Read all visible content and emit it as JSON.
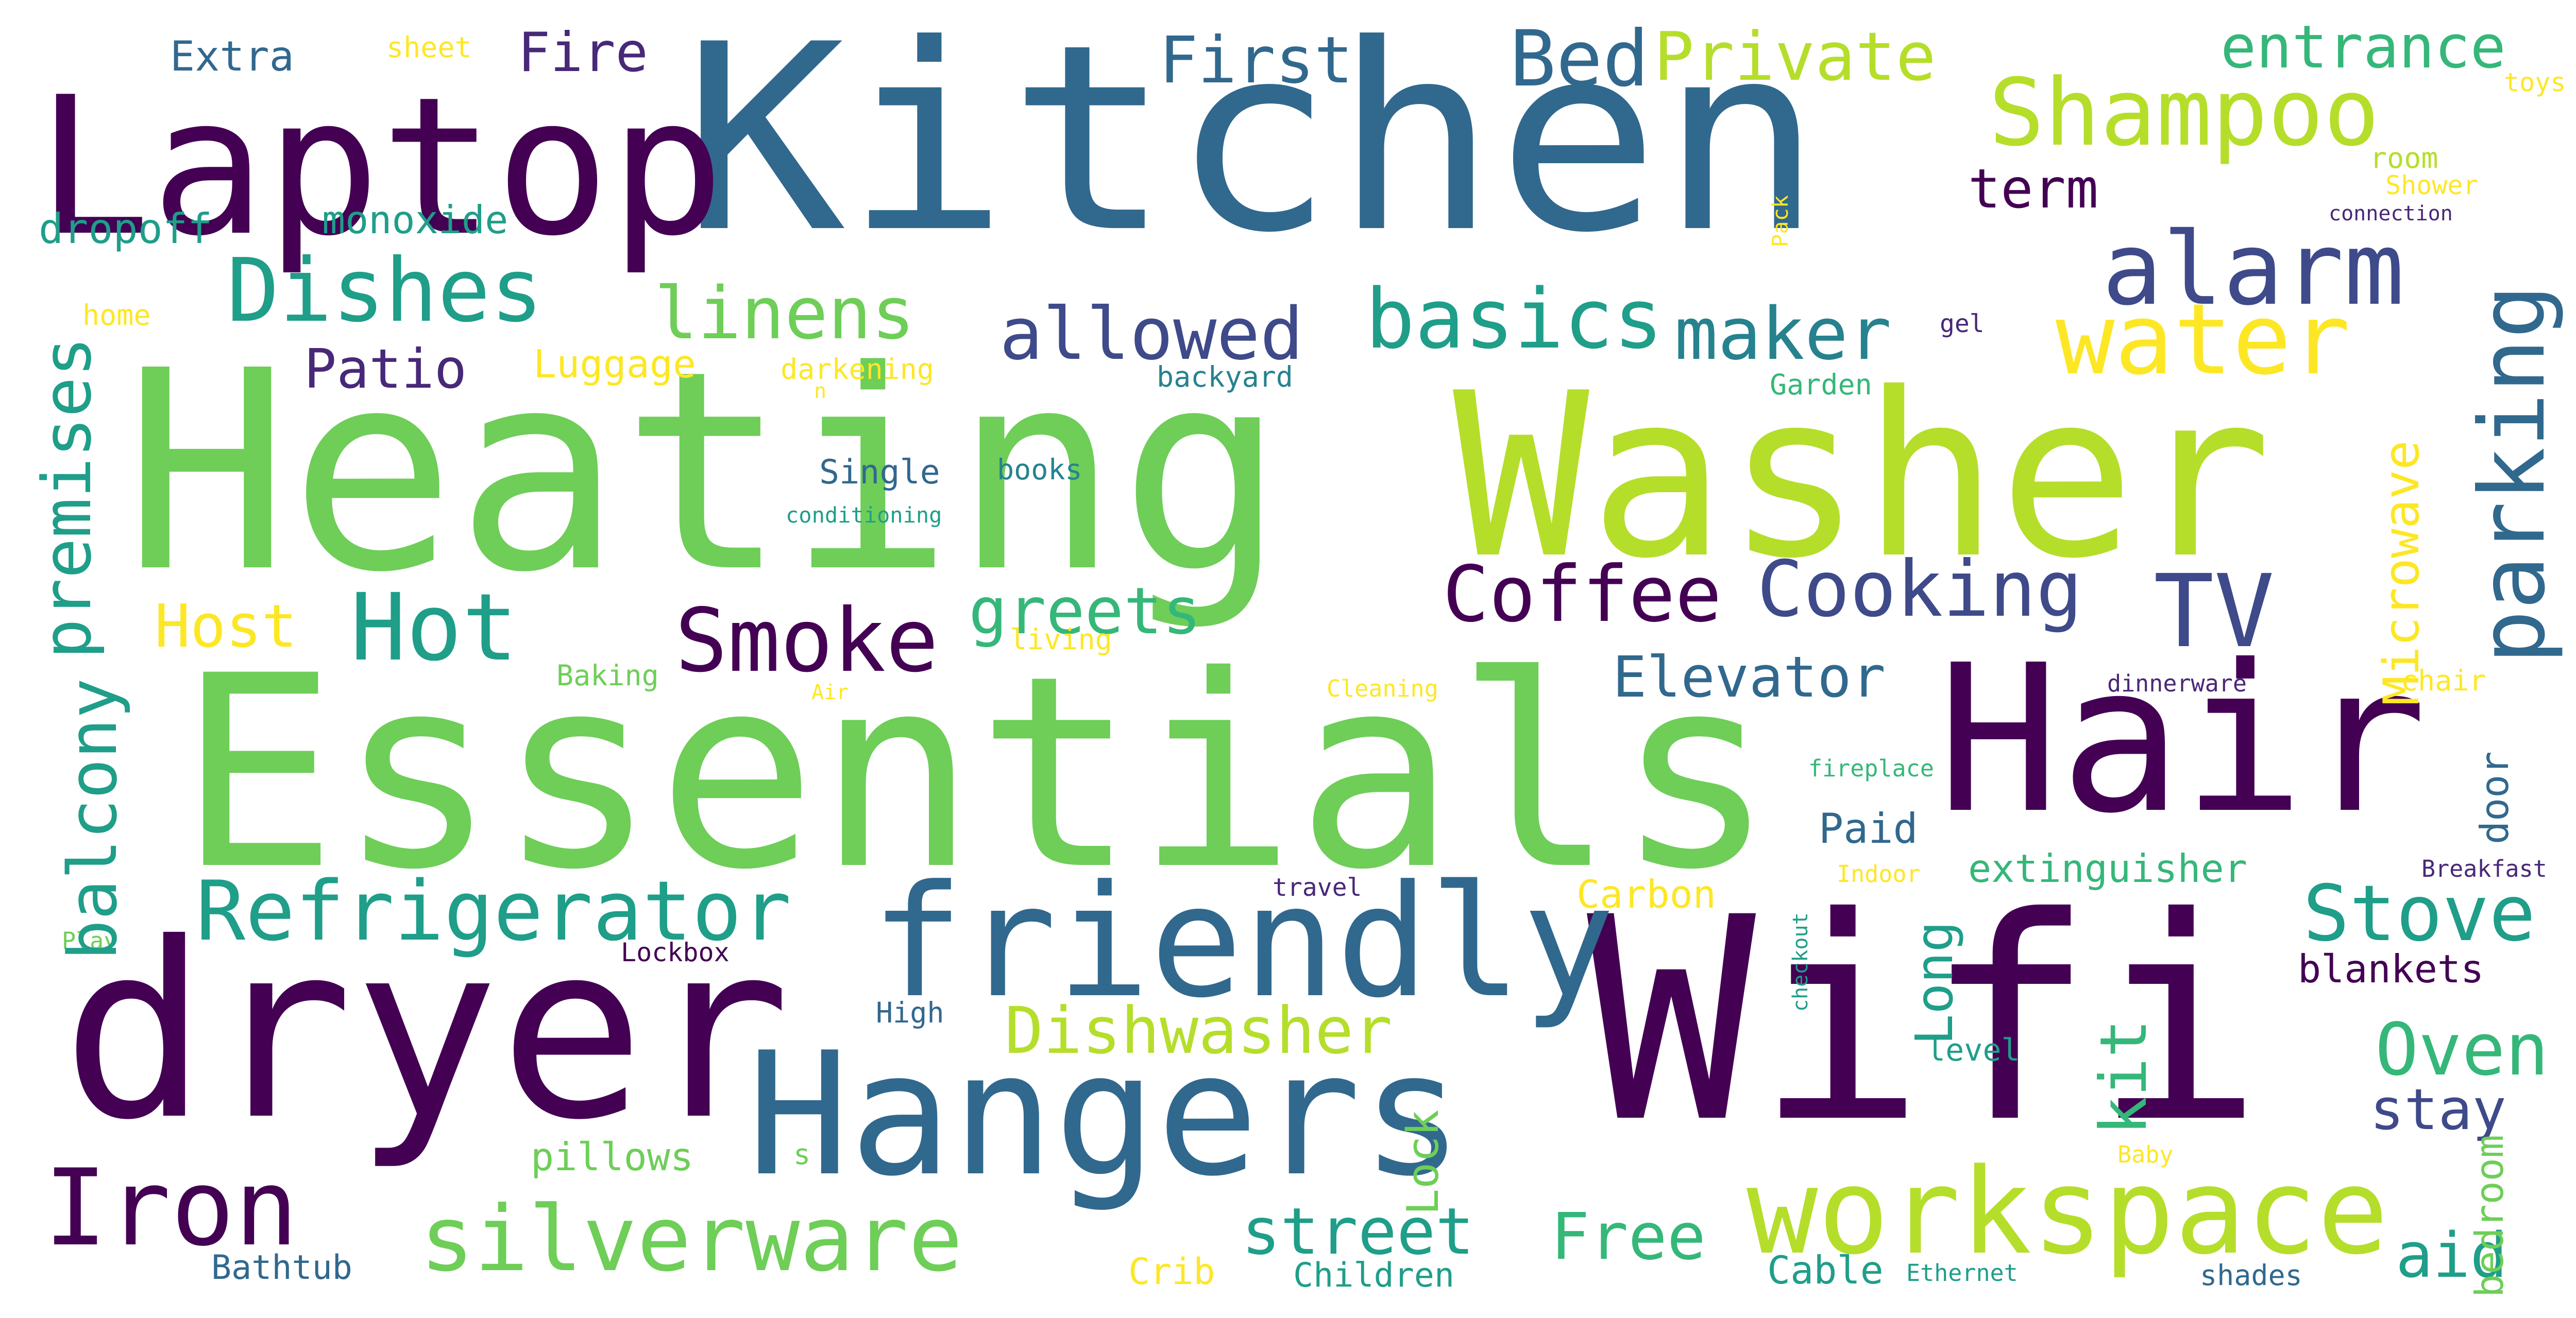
{
  "colors": {
    "background": "#ffffff",
    "c1": "#440154",
    "c2": "#482878",
    "c3": "#3e4a89",
    "c4": "#31688e",
    "c5": "#26828e",
    "c6": "#1f9e89",
    "c7": "#35b779",
    "c8": "#6ece58",
    "c9": "#b5de2b",
    "c10": "#fde725"
  },
  "words": {
    "kitchen": "Kitchen",
    "heating": "Heating",
    "essentials": "Essentials",
    "washer": "Washer",
    "wifi": "Wifi",
    "dryer": "dryer",
    "hair": "Hair",
    "laptop": "Laptop",
    "hangers": "Hangers",
    "friendly": "friendly",
    "workspace": "workspace",
    "iron": "Iron",
    "silverware": "silverware",
    "refrigerator": "Refrigerator",
    "alarm": "alarm",
    "water": "water",
    "shampoo": "Shampoo",
    "parking": "parking",
    "dishes": "Dishes",
    "hot": "Hot",
    "smoke": "Smoke",
    "coffee": "Coffee",
    "cooking": "Cooking",
    "tv": "TV",
    "basics": "basics",
    "maker": "maker",
    "allowed": "allowed",
    "linens": "linens",
    "bed": "Bed",
    "private": "Private",
    "entrance": "entrance",
    "first": "First",
    "fire": "Fire",
    "extra": "Extra",
    "premises": "premises",
    "balcony": "balcony",
    "greets": "greets",
    "host": "Host",
    "patio": "Patio",
    "elevator": "Elevator",
    "microwave": "Microwave",
    "dishwasher": "Dishwasher",
    "stove": "Stove",
    "oven": "Oven",
    "free": "Free",
    "street": "street",
    "long": "Long",
    "stay": "stay",
    "kit": "kit",
    "aid": "aid",
    "term": "term",
    "monoxide": "monoxide",
    "dropoff": "dropoff",
    "luggage": "Luggage",
    "pillows": "pillows",
    "blankets": "blankets",
    "extinguisher": "extinguisher",
    "carbon": "Carbon",
    "paid": "Paid",
    "cable": "Cable",
    "children": "Children",
    "crib": "Crib",
    "bathtub": "Bathtub",
    "lock": "Lock",
    "bedroom": "bedroom",
    "door": "door",
    "level": "level",
    "single": "Single",
    "books": "books",
    "conditioning": "conditioning",
    "backyard": "backyard",
    "darkening": "darkening",
    "n": "n",
    "home": "home",
    "sheet": "sheet",
    "room": "room",
    "shower": "Shower",
    "gel": "gel",
    "connection": "connection",
    "toys": "toys",
    "pack": "Pack",
    "garden": "Garden",
    "baking": "Baking",
    "air": "Air",
    "living": "living",
    "cleaning": "Cleaning",
    "dinnerware": "dinnerware",
    "chair": "chair",
    "fireplace": "fireplace",
    "indoor": "Indoor",
    "breakfast": "Breakfast",
    "travel": "travel",
    "play": "Play",
    "lockbox": "Lockbox",
    "high": "High",
    "checkout": "checkout",
    "s": "s",
    "baby": "Baby",
    "ethernet": "Ethernet",
    "shades": "shades"
  }
}
